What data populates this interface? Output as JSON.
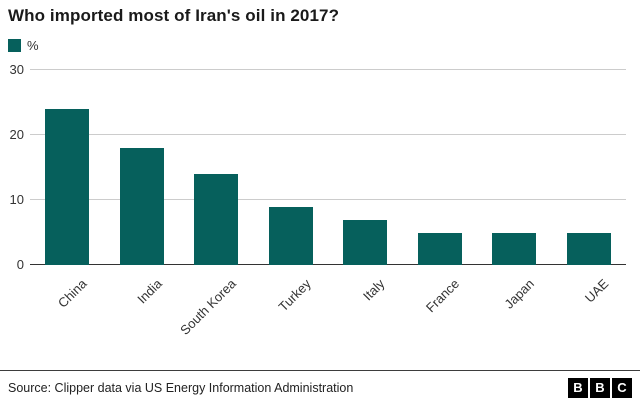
{
  "chart_data": {
    "type": "bar",
    "title": "Who imported most of Iran's oil in 2017?",
    "legend_label": "%",
    "categories": [
      "China",
      "India",
      "South Korea",
      "Turkey",
      "Italy",
      "France",
      "Japan",
      "UAE"
    ],
    "values": [
      24,
      18,
      14,
      9,
      7,
      5,
      5,
      5
    ],
    "xlabel": "",
    "ylabel": "%",
    "ylim": [
      0,
      30
    ],
    "yticks": [
      0,
      10,
      20,
      30
    ],
    "bar_color": "#06605c",
    "grid": true,
    "legend_position": "top-left"
  },
  "footer": {
    "source": "Source: Clipper data via US Energy Information Administration",
    "logo_letters": [
      "B",
      "B",
      "C"
    ]
  }
}
